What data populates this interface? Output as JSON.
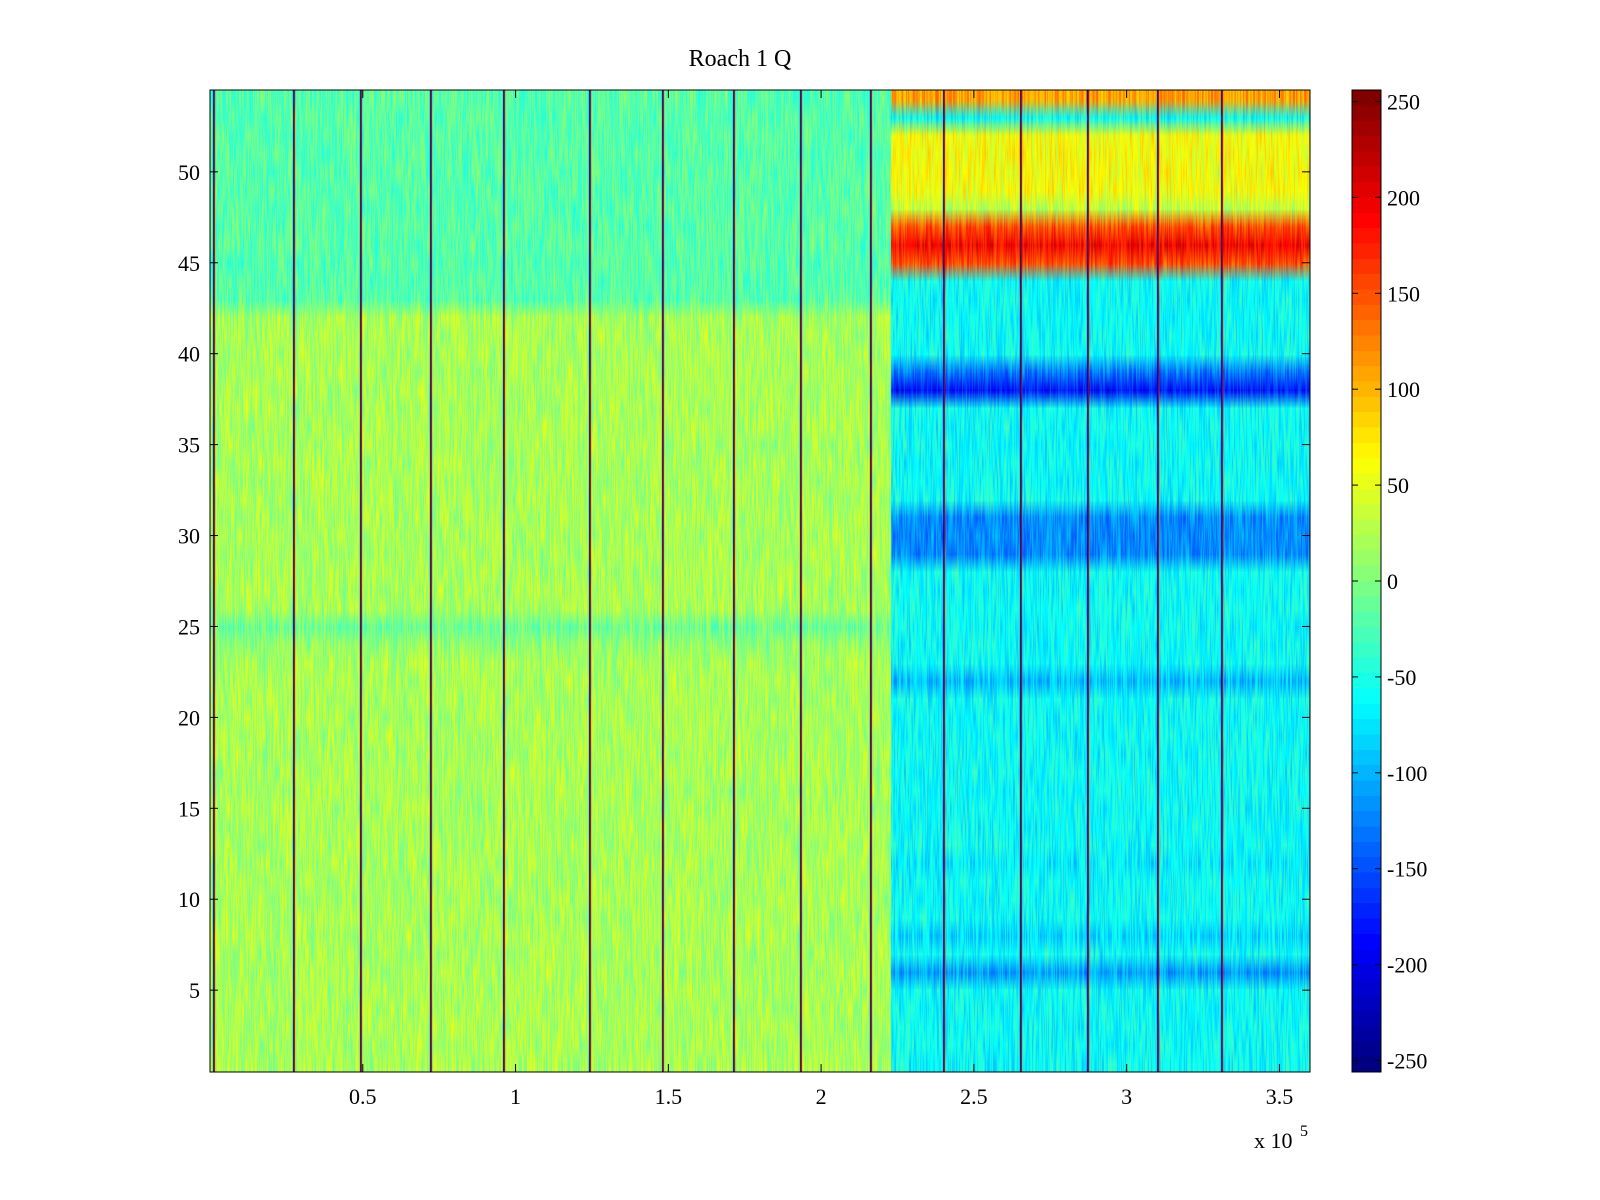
{
  "chart_data": {
    "type": "heatmap",
    "title": "Roach 1 Q",
    "xlabel": "",
    "ylabel": "",
    "x_exponent_label": "x 10",
    "x_exponent": "5",
    "xlim": [
      0,
      3.6
    ],
    "ylim": [
      0.5,
      54.5
    ],
    "x_ticks": [
      0.5,
      1,
      1.5,
      2,
      2.5,
      3,
      3.5
    ],
    "x_tick_labels": [
      "0.5",
      "1",
      "1.5",
      "2",
      "2.5",
      "3",
      "3.5"
    ],
    "y_ticks": [
      5,
      10,
      15,
      20,
      25,
      30,
      35,
      40,
      45,
      50
    ],
    "y_tick_labels": [
      "5",
      "10",
      "15",
      "20",
      "25",
      "30",
      "35",
      "40",
      "45",
      "50"
    ],
    "colormap": "jet",
    "colorbar": {
      "limits": [
        -256,
        256
      ],
      "ticks": [
        250,
        200,
        150,
        100,
        50,
        0,
        -50,
        -100,
        -150,
        -200,
        -250
      ],
      "tick_labels": [
        "250",
        "200",
        "150",
        "100",
        "50",
        "0",
        "-50",
        "-100",
        "-150",
        "-200",
        "-250"
      ]
    },
    "regime_boundary_x": 2.23,
    "row_baselines_left": {
      "rows_1_23": 20,
      "row_24": 10,
      "row_25": -10,
      "rows_26_42": 20,
      "rows_43_54": -20
    },
    "row_baselines_right": {
      "6": -110,
      "29": -120,
      "30": -120,
      "31": -120,
      "38": -180,
      "39": -130,
      "45": 150,
      "46": 190,
      "47": 150,
      "48": 30,
      "49": 60,
      "50": 60,
      "51": 60,
      "52": 60,
      "54": 110,
      "22": -95,
      "8": -80,
      "12": -70
    },
    "right_default_baseline": -60,
    "vertical_spike_x": [
      0.01,
      0.27,
      0.49,
      0.72,
      0.96,
      1.24,
      1.48,
      1.71,
      1.93,
      2.16,
      2.4,
      2.65,
      2.87,
      3.1,
      3.31
    ],
    "noise_amplitude": 30
  }
}
